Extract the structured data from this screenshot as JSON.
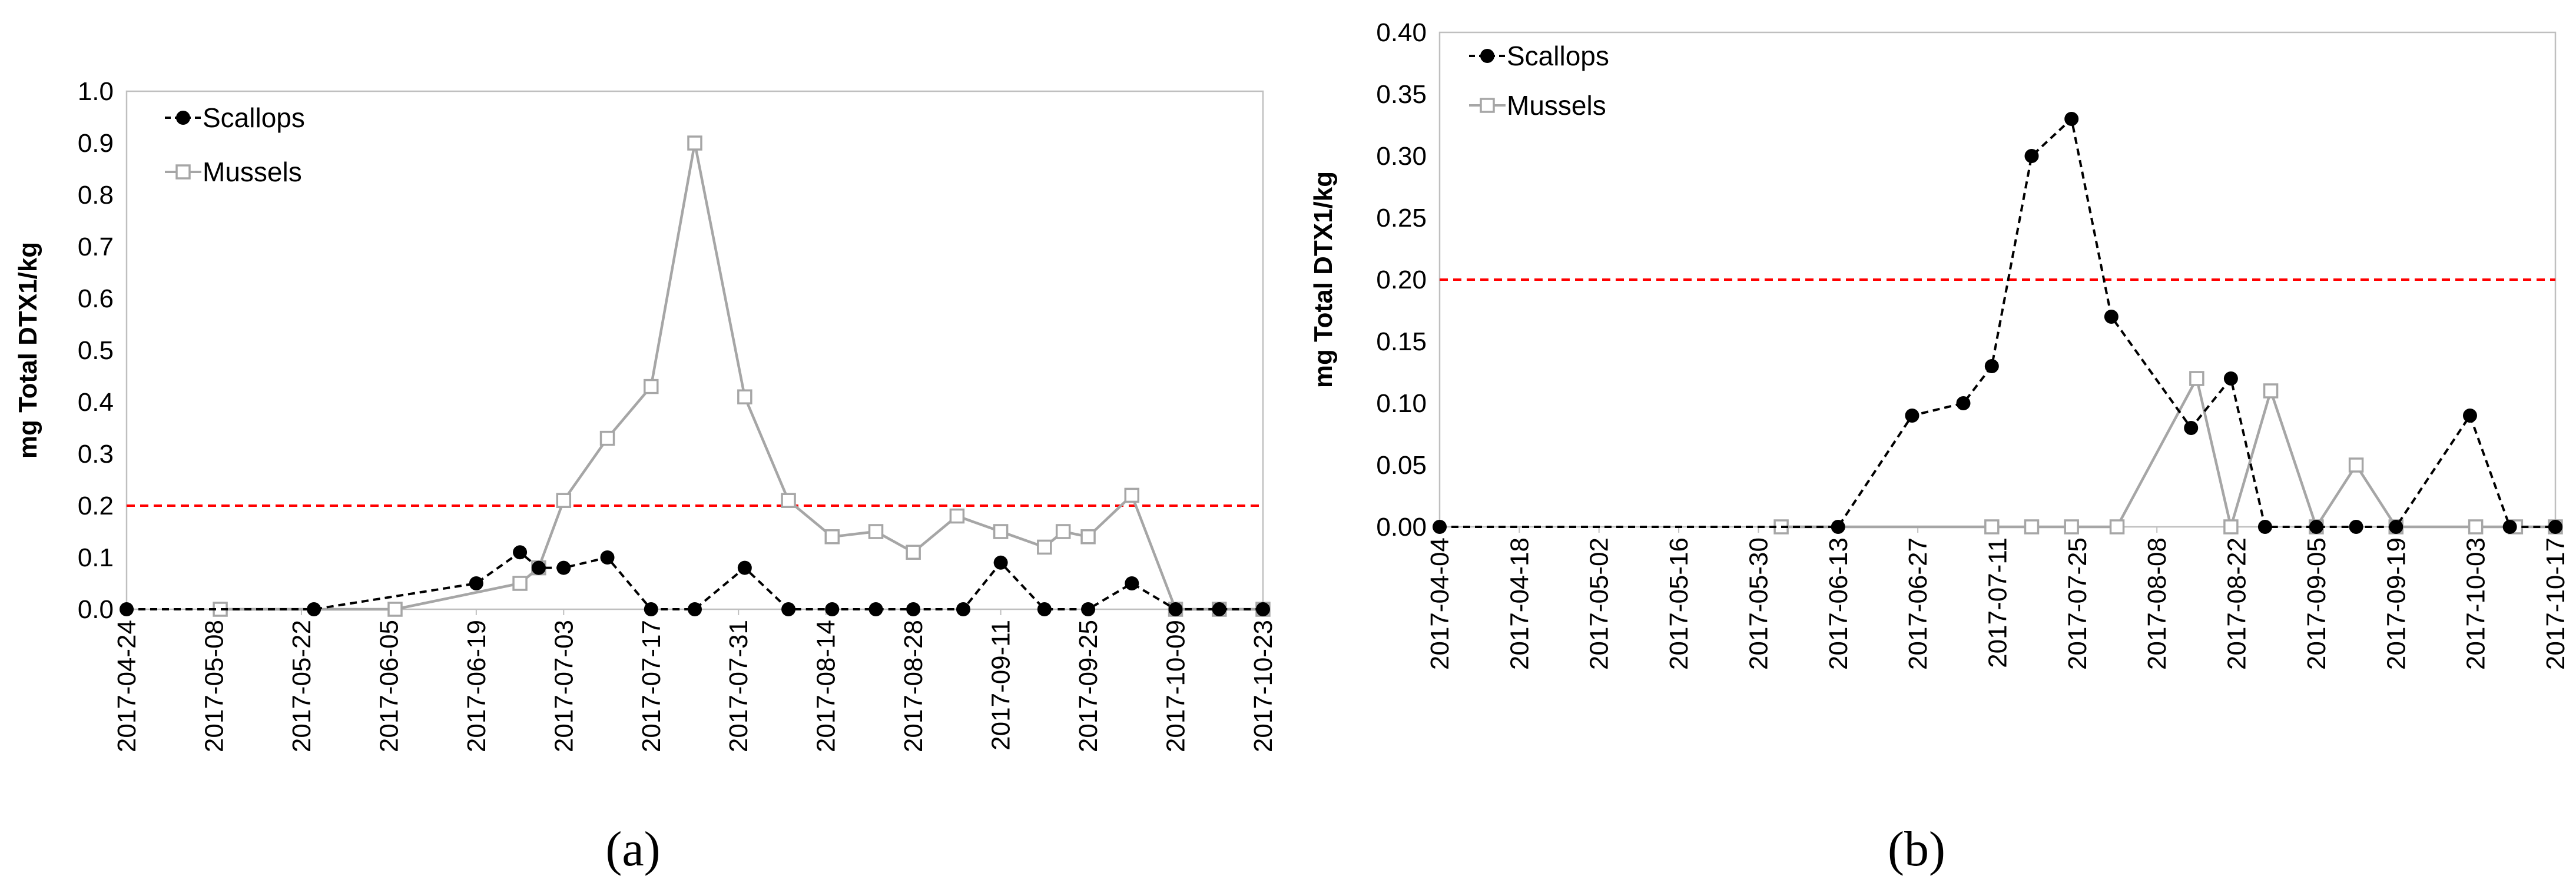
{
  "chart_data": [
    {
      "panel_label": "(a)",
      "type": "line",
      "ylabel": "mg Total DTX1/kg",
      "ylim": [
        0,
        1.0
      ],
      "y_ticks": [
        "0.0",
        "0.1",
        "0.2",
        "0.3",
        "0.4",
        "0.5",
        "0.6",
        "0.7",
        "0.8",
        "0.9",
        "1.0"
      ],
      "x_tick_labels": [
        "2017-04-24",
        "2017-05-08",
        "2017-05-22",
        "2017-06-05",
        "2017-06-19",
        "2017-07-03",
        "2017-07-17",
        "2017-07-31",
        "2017-08-14",
        "2017-08-28",
        "2017-09-11",
        "2017-09-25",
        "2017-10-09",
        "2017-10-23"
      ],
      "xlim": [
        "2017-04-24",
        "2017-10-23"
      ],
      "reference_line": {
        "y": 0.2,
        "style": "dashed",
        "color": "#ff0000"
      },
      "legend_position": "top-left",
      "series": [
        {
          "name": "Scallops",
          "style": "dashed",
          "marker": "filled-circle",
          "color": "#000000",
          "x": [
            "2017-04-24",
            "2017-05-24",
            "2017-06-19",
            "2017-06-26",
            "2017-06-29",
            "2017-07-03",
            "2017-07-10",
            "2017-07-17",
            "2017-07-24",
            "2017-08-01",
            "2017-08-08",
            "2017-08-15",
            "2017-08-22",
            "2017-08-28",
            "2017-09-05",
            "2017-09-11",
            "2017-09-18",
            "2017-09-25",
            "2017-10-02",
            "2017-10-09",
            "2017-10-16",
            "2017-10-23"
          ],
          "y": [
            0,
            0,
            0.05,
            0.11,
            0.08,
            0.08,
            0.1,
            0,
            0,
            0.08,
            0,
            0,
            0,
            0,
            0,
            0.09,
            0,
            0,
            0.05,
            0,
            0,
            0
          ]
        },
        {
          "name": "Mussels",
          "style": "solid",
          "marker": "open-square",
          "color": "#a6a6a6",
          "x": [
            "2017-05-09",
            "2017-06-06",
            "2017-06-26",
            "2017-06-29",
            "2017-07-03",
            "2017-07-10",
            "2017-07-17",
            "2017-07-24",
            "2017-08-01",
            "2017-08-08",
            "2017-08-15",
            "2017-08-22",
            "2017-08-28",
            "2017-09-04",
            "2017-09-11",
            "2017-09-18",
            "2017-09-21",
            "2017-09-25",
            "2017-10-02",
            "2017-10-09",
            "2017-10-16",
            "2017-10-23"
          ],
          "y": [
            0,
            0,
            0.05,
            0.08,
            0.21,
            0.33,
            0.43,
            0.9,
            0.41,
            0.21,
            0.14,
            0.15,
            0.11,
            0.18,
            0.15,
            0.12,
            0.15,
            0.14,
            0.22,
            0,
            0,
            0
          ]
        }
      ]
    },
    {
      "panel_label": "(b)",
      "type": "line",
      "ylabel": "mg Total DTX1/kg",
      "ylim": [
        0,
        0.4
      ],
      "y_ticks": [
        "0.00",
        "0.05",
        "0.10",
        "0.15",
        "0.20",
        "0.25",
        "0.30",
        "0.35",
        "0.40"
      ],
      "x_tick_labels": [
        "2017-04-04",
        "2017-04-18",
        "2017-05-02",
        "2017-05-16",
        "2017-05-30",
        "2017-06-13",
        "2017-06-27",
        "2017-07-11",
        "2017-07-25",
        "2017-08-08",
        "2017-08-22",
        "2017-09-05",
        "2017-09-19",
        "2017-10-03",
        "2017-10-17"
      ],
      "xlim": [
        "2017-04-04",
        "2017-10-17"
      ],
      "reference_line": {
        "y": 0.2,
        "style": "dashed",
        "color": "#ff0000"
      },
      "legend_position": "top-left",
      "series": [
        {
          "name": "Scallops",
          "style": "dashed",
          "marker": "filled-circle",
          "color": "#000000",
          "x": [
            "2017-04-04",
            "2017-06-13",
            "2017-06-26",
            "2017-07-05",
            "2017-07-10",
            "2017-07-17",
            "2017-07-24",
            "2017-07-31",
            "2017-08-14",
            "2017-08-21",
            "2017-08-27",
            "2017-09-05",
            "2017-09-12",
            "2017-09-19",
            "2017-10-02",
            "2017-10-09",
            "2017-10-17"
          ],
          "y": [
            0,
            0,
            0.09,
            0.1,
            0.13,
            0.3,
            0.33,
            0.17,
            0.08,
            0.12,
            0,
            0,
            0,
            0,
            0.09,
            0,
            0
          ]
        },
        {
          "name": "Mussels",
          "style": "solid",
          "marker": "open-square",
          "color": "#a6a6a6",
          "x": [
            "2017-06-03",
            "2017-07-10",
            "2017-07-17",
            "2017-07-24",
            "2017-08-01",
            "2017-08-15",
            "2017-08-21",
            "2017-08-28",
            "2017-09-05",
            "2017-09-12",
            "2017-09-19",
            "2017-10-03",
            "2017-10-10",
            "2017-10-17"
          ],
          "y": [
            0,
            0,
            0,
            0,
            0,
            0.12,
            0,
            0.11,
            0,
            0.05,
            0,
            0,
            0,
            0
          ]
        }
      ]
    }
  ]
}
